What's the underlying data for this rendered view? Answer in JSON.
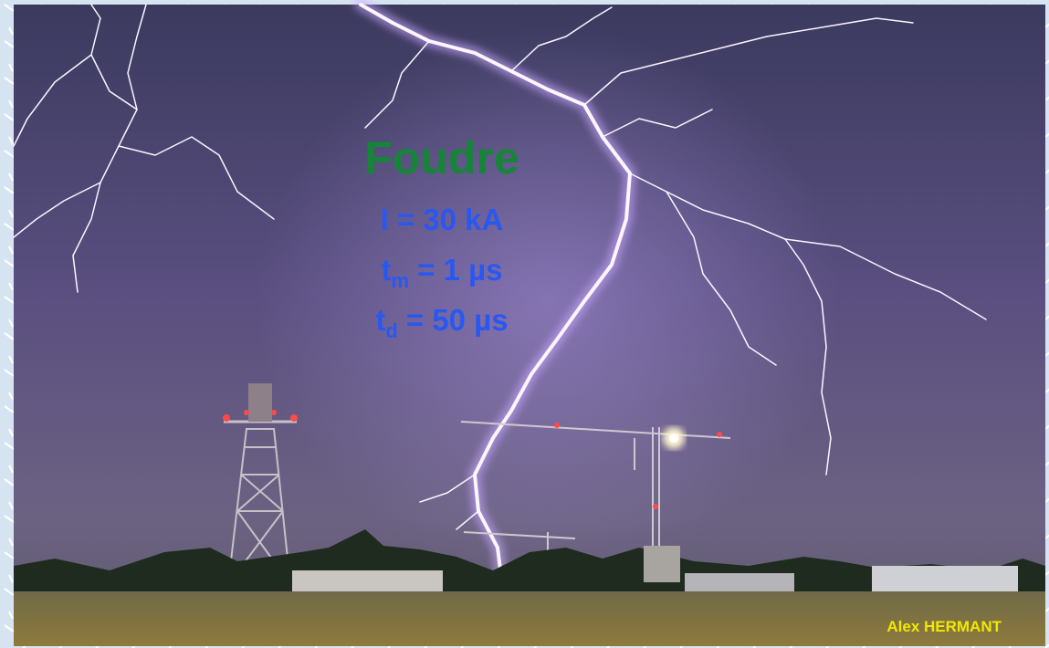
{
  "overlay": {
    "title": "Foudre",
    "lines": [
      {
        "symbol": "I",
        "subscript": null,
        "rest": "= 30 kA"
      },
      {
        "symbol": "t",
        "subscript": "m",
        "rest": "= 1 µs"
      },
      {
        "symbol": "t",
        "subscript": "d",
        "rest": "= 50 µs"
      }
    ]
  },
  "credit": "Alex HERMANT"
}
